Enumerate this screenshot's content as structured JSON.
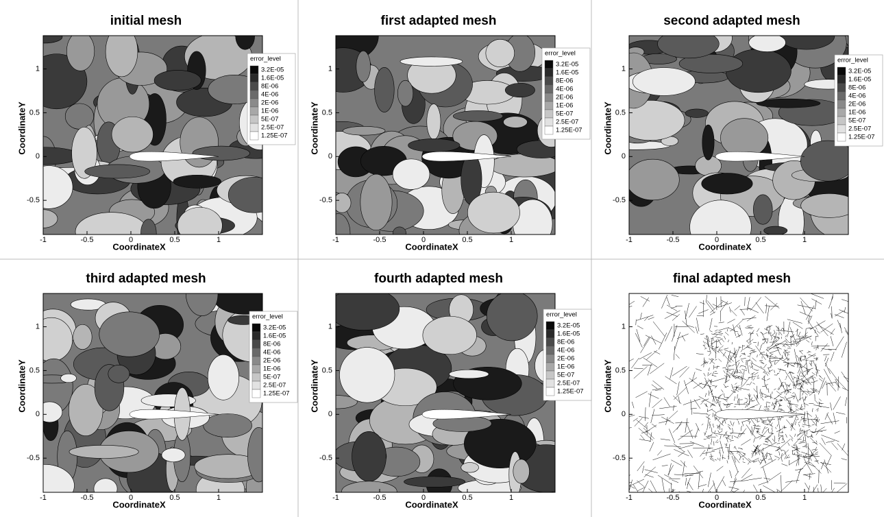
{
  "chart_data": [
    {
      "type": "contour",
      "title": "initial mesh",
      "x_label": "CoordinateX",
      "y_label": "CoordinateY",
      "xlim": [
        -1,
        1.5
      ],
      "ylim": [
        -0.89,
        1.38
      ],
      "xticks": [
        -1,
        -0.5,
        0,
        0.5,
        1
      ],
      "yticks": [
        -0.5,
        0,
        0.5,
        1
      ],
      "legend_title": "error_level",
      "levels": [
        {
          "value": 3.2e-05,
          "label": "3.2E-05"
        },
        {
          "value": 1.6e-05,
          "label": "1.6E-05"
        },
        {
          "value": 8e-06,
          "label": "8E-06"
        },
        {
          "value": 4e-06,
          "label": "4E-06"
        },
        {
          "value": 2e-06,
          "label": "2E-06"
        },
        {
          "value": 1e-06,
          "label": "1E-06"
        },
        {
          "value": 5e-07,
          "label": "5E-07"
        },
        {
          "value": 2.5e-07,
          "label": "2.5E-07"
        },
        {
          "value": 1.25e-07,
          "label": "1.25E-07"
        }
      ],
      "colors": [
        "#0a0a0a",
        "#2a2a2a",
        "#4a4a4a",
        "#6a6a6a",
        "#8a8a8a",
        "#a8a8a8",
        "#c6c6c6",
        "#e2e2e2",
        "#ffffff"
      ]
    },
    {
      "type": "contour",
      "title": "first adapted mesh",
      "x_label": "CoordinateX",
      "y_label": "CoordinateY",
      "xlim": [
        -1,
        1.5
      ],
      "ylim": [
        -0.89,
        1.38
      ],
      "xticks": [
        -1,
        -0.5,
        0,
        0.5,
        1
      ],
      "yticks": [
        -0.5,
        0,
        0.5,
        1
      ],
      "legend_title": "error_level",
      "levels": [
        {
          "value": 3.2e-05,
          "label": "3.2E-05"
        },
        {
          "value": 1.6e-05,
          "label": "1.6E-05"
        },
        {
          "value": 8e-06,
          "label": "8E-06"
        },
        {
          "value": 4e-06,
          "label": "4E-06"
        },
        {
          "value": 2e-06,
          "label": "2E-06"
        },
        {
          "value": 1e-06,
          "label": "1E-06"
        },
        {
          "value": 5e-07,
          "label": "5E-07"
        },
        {
          "value": 2.5e-07,
          "label": "2.5E-07"
        },
        {
          "value": 1.25e-07,
          "label": "1.25E-07"
        }
      ],
      "colors": [
        "#0a0a0a",
        "#2a2a2a",
        "#4a4a4a",
        "#6a6a6a",
        "#8a8a8a",
        "#a8a8a8",
        "#c6c6c6",
        "#e2e2e2",
        "#ffffff"
      ]
    },
    {
      "type": "contour",
      "title": "second adapted mesh",
      "x_label": "CoordinateX",
      "y_label": "CoordinateY",
      "xlim": [
        -1,
        1.5
      ],
      "ylim": [
        -0.89,
        1.38
      ],
      "xticks": [
        -1,
        -0.5,
        0,
        0.5,
        1
      ],
      "yticks": [
        -0.5,
        0,
        0.5,
        1
      ],
      "legend_title": "error_level",
      "levels": [
        {
          "value": 3.2e-05,
          "label": "3.2E-05"
        },
        {
          "value": 1.6e-05,
          "label": "1.6E-05"
        },
        {
          "value": 8e-06,
          "label": "8E-06"
        },
        {
          "value": 4e-06,
          "label": "4E-06"
        },
        {
          "value": 2e-06,
          "label": "2E-06"
        },
        {
          "value": 1e-06,
          "label": "1E-06"
        },
        {
          "value": 5e-07,
          "label": "5E-07"
        },
        {
          "value": 2.5e-07,
          "label": "2.5E-07"
        },
        {
          "value": 1.25e-07,
          "label": "1.25E-07"
        }
      ],
      "colors": [
        "#0a0a0a",
        "#2a2a2a",
        "#4a4a4a",
        "#6a6a6a",
        "#8a8a8a",
        "#a8a8a8",
        "#c6c6c6",
        "#e2e2e2",
        "#ffffff"
      ]
    },
    {
      "type": "contour",
      "title": "third adapted mesh",
      "x_label": "CoordinateX",
      "y_label": "CoordinateY",
      "xlim": [
        -1,
        1.5
      ],
      "ylim": [
        -0.89,
        1.38
      ],
      "xticks": [
        -1,
        -0.5,
        0,
        0.5,
        1
      ],
      "yticks": [
        -0.5,
        0,
        0.5,
        1
      ],
      "legend_title": "error_level",
      "levels": [
        {
          "value": 3.2e-05,
          "label": "3.2E-05"
        },
        {
          "value": 1.6e-05,
          "label": "1.6E-05"
        },
        {
          "value": 8e-06,
          "label": "8E-06"
        },
        {
          "value": 4e-06,
          "label": "4E-06"
        },
        {
          "value": 2e-06,
          "label": "2E-06"
        },
        {
          "value": 1e-06,
          "label": "1E-06"
        },
        {
          "value": 5e-07,
          "label": "5E-07"
        },
        {
          "value": 2.5e-07,
          "label": "2.5E-07"
        },
        {
          "value": 1.25e-07,
          "label": "1.25E-07"
        }
      ],
      "colors": [
        "#0a0a0a",
        "#2a2a2a",
        "#4a4a4a",
        "#6a6a6a",
        "#8a8a8a",
        "#a8a8a8",
        "#c6c6c6",
        "#e2e2e2",
        "#ffffff"
      ]
    },
    {
      "type": "contour",
      "title": "fourth adapted mesh",
      "x_label": "CoordinateX",
      "y_label": "CoordinateY",
      "xlim": [
        -1,
        1.5
      ],
      "ylim": [
        -0.89,
        1.38
      ],
      "xticks": [
        -1,
        -0.5,
        0,
        0.5,
        1
      ],
      "yticks": [
        -0.5,
        0,
        0.5,
        1
      ],
      "legend_title": "error_level",
      "levels": [
        {
          "value": 3.2e-05,
          "label": "3.2E-05"
        },
        {
          "value": 1.6e-05,
          "label": "1.6E-05"
        },
        {
          "value": 8e-06,
          "label": "8E-06"
        },
        {
          "value": 4e-06,
          "label": "4E-06"
        },
        {
          "value": 2e-06,
          "label": "2E-06"
        },
        {
          "value": 1e-06,
          "label": "1E-06"
        },
        {
          "value": 5e-07,
          "label": "5E-07"
        },
        {
          "value": 2.5e-07,
          "label": "2.5E-07"
        },
        {
          "value": 1.25e-07,
          "label": "1.25E-07"
        }
      ],
      "colors": [
        "#0a0a0a",
        "#2a2a2a",
        "#4a4a4a",
        "#6a6a6a",
        "#8a8a8a",
        "#a8a8a8",
        "#c6c6c6",
        "#e2e2e2",
        "#ffffff"
      ]
    },
    {
      "type": "mesh",
      "title": "final adapted mesh",
      "x_label": "CoordinateX",
      "y_label": "CoordinateY",
      "xlim": [
        -1,
        1.5
      ],
      "ylim": [
        -0.89,
        1.38
      ],
      "xticks": [
        -1,
        -0.5,
        0,
        0.5,
        1
      ],
      "yticks": [
        -0.5,
        0,
        0.5,
        1
      ]
    }
  ]
}
